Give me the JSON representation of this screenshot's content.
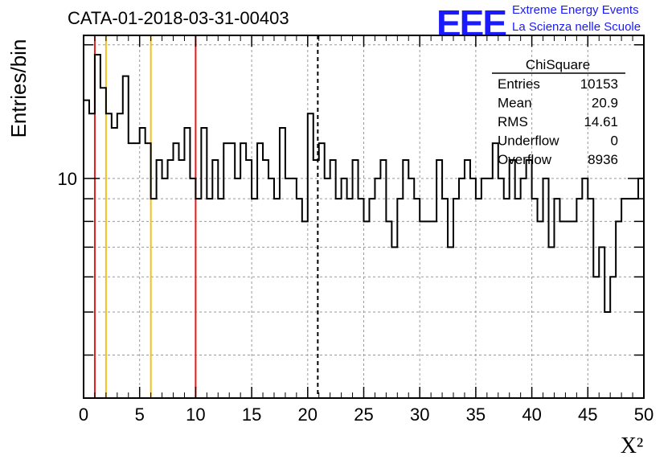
{
  "header": {
    "run_title": "CATA-01-2018-03-31-00403",
    "logo_text": "EEE",
    "tagline_1": "Extreme Energy Events",
    "tagline_2": "La Scienza nelle Scuole"
  },
  "stats_box": {
    "title": "ChiSquare",
    "rows": [
      {
        "label": "Entries",
        "value": "10153"
      },
      {
        "label": "Mean",
        "value": "20.9"
      },
      {
        "label": "RMS",
        "value": "14.61"
      },
      {
        "label": "Underflow",
        "value": "0"
      },
      {
        "label": "Overflow",
        "value": "8936"
      }
    ]
  },
  "colors": {
    "histogram": "#000000",
    "red_line": "#e8191a",
    "yellow_line": "#f2c11c",
    "grid": "#999999"
  },
  "chart_data": {
    "type": "histogram",
    "title": "CATA-01-2018-03-31-00403",
    "xlabel": "X²",
    "ylabel": "Entries/bin",
    "xlim": [
      0,
      50
    ],
    "ylim": [
      3.2,
      21
    ],
    "y_scale": "log",
    "grid": true,
    "x_ticks": [
      "0",
      "5",
      "10",
      "15",
      "20",
      "25",
      "30",
      "35",
      "40",
      "45",
      "50"
    ],
    "y_tick_labels": [
      {
        "value": 10,
        "label": "10"
      }
    ],
    "bin_width": 0.5,
    "bin_start": 0,
    "values": [
      15,
      14,
      19,
      16,
      14,
      13,
      14,
      17,
      12,
      12,
      13,
      12,
      9,
      11,
      10,
      11,
      12,
      11,
      13,
      10,
      9,
      13,
      9,
      11,
      9,
      12,
      12,
      10,
      12,
      11,
      9,
      12,
      11,
      10,
      9,
      13,
      10,
      10,
      9,
      8,
      14,
      11,
      12,
      10,
      11,
      9,
      10,
      9,
      11,
      9,
      8,
      9,
      10,
      11,
      8,
      7,
      9,
      11,
      10,
      9,
      8,
      8,
      8,
      11,
      9,
      7,
      9,
      10,
      11,
      10,
      9,
      10,
      10,
      12,
      10,
      9,
      11,
      9,
      10,
      11,
      9,
      8,
      10,
      7,
      9,
      8,
      8,
      8,
      9,
      10,
      9,
      6,
      7,
      5,
      6,
      8,
      9,
      9,
      9,
      10
    ],
    "vertical_lines": [
      {
        "x": 1,
        "color": "red",
        "style": "solid"
      },
      {
        "x": 2,
        "color": "yellow",
        "style": "solid"
      },
      {
        "x": 6,
        "color": "yellow",
        "style": "solid"
      },
      {
        "x": 10,
        "color": "red",
        "style": "solid"
      },
      {
        "x": 20.9,
        "color": "black",
        "style": "dashed"
      }
    ]
  }
}
